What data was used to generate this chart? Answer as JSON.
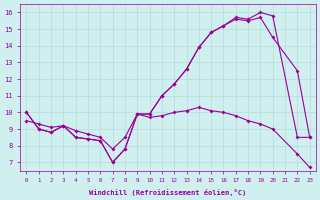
{
  "xlabel": "Windchill (Refroidissement éolien,°C)",
  "bg_color": "#d0efef",
  "line_color": "#990099",
  "xlim": [
    -0.5,
    23.5
  ],
  "ylim": [
    6.5,
    16.5
  ],
  "xticks": [
    0,
    1,
    2,
    3,
    4,
    5,
    6,
    7,
    8,
    9,
    10,
    11,
    12,
    13,
    14,
    15,
    16,
    17,
    18,
    19,
    20,
    21,
    22,
    23
  ],
  "yticks": [
    7,
    8,
    9,
    10,
    11,
    12,
    13,
    14,
    15,
    16
  ],
  "line1_x": [
    0,
    1,
    2,
    3,
    4,
    5,
    6,
    7,
    8,
    9,
    10,
    11,
    12,
    13,
    14,
    15,
    16,
    17,
    18,
    19,
    20,
    22,
    23
  ],
  "line1_y": [
    10.0,
    9.0,
    8.8,
    9.2,
    8.5,
    8.4,
    8.3,
    7.0,
    7.8,
    9.9,
    9.9,
    11.0,
    11.7,
    12.6,
    13.9,
    14.8,
    15.2,
    15.7,
    15.6,
    16.0,
    15.8,
    8.5,
    8.5
  ],
  "line2_x": [
    0,
    1,
    2,
    3,
    4,
    5,
    6,
    7,
    8,
    9,
    10,
    11,
    12,
    13,
    14,
    15,
    16,
    17,
    18,
    19,
    20,
    22,
    23
  ],
  "line2_y": [
    10.0,
    9.0,
    8.8,
    9.2,
    8.5,
    8.4,
    8.3,
    7.0,
    7.8,
    9.9,
    9.9,
    11.0,
    11.7,
    12.6,
    13.9,
    14.8,
    15.2,
    15.6,
    15.5,
    15.7,
    14.5,
    12.5,
    8.5
  ],
  "line3_x": [
    0,
    1,
    2,
    3,
    4,
    5,
    6,
    7,
    8,
    9,
    10,
    11,
    12,
    13,
    14,
    15,
    16,
    17,
    18,
    19,
    20,
    22,
    23
  ],
  "line3_y": [
    9.5,
    9.3,
    9.1,
    9.2,
    8.9,
    8.7,
    8.5,
    7.8,
    8.5,
    9.9,
    9.7,
    9.8,
    10.0,
    10.1,
    10.3,
    10.1,
    10.0,
    9.8,
    9.5,
    9.3,
    9.0,
    7.5,
    6.7
  ]
}
